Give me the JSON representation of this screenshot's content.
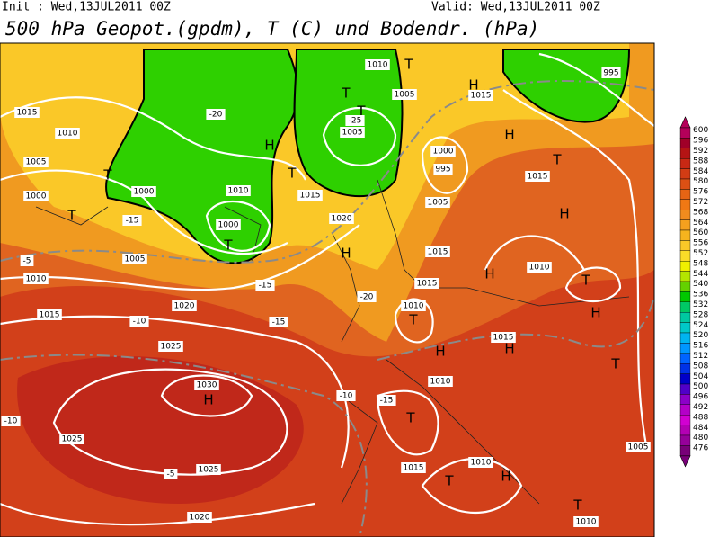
{
  "header": {
    "init": "Init : Wed,13JUL2011 00Z",
    "valid": "Valid: Wed,13JUL2011 00Z",
    "title": "500 hPa Geopot.(gpdm), T (C) und Bodendr. (hPa)"
  },
  "legend": {
    "levels": [
      600,
      596,
      592,
      588,
      584,
      580,
      576,
      572,
      568,
      564,
      560,
      556,
      552,
      548,
      544,
      540,
      536,
      532,
      528,
      524,
      520,
      516,
      512,
      508,
      504,
      500,
      496,
      492,
      488,
      484,
      480,
      476
    ],
    "colors": [
      "#b4005a",
      "#a00028",
      "#b41414",
      "#c82814",
      "#d23c14",
      "#dc5014",
      "#e66414",
      "#f07814",
      "#f08c1e",
      "#f5a01e",
      "#f5b41e",
      "#fac828",
      "#fadc28",
      "#f0f000",
      "#b4e600",
      "#64d200",
      "#00c800",
      "#00c864",
      "#00c8a0",
      "#00c8c8",
      "#00b4f0",
      "#0096ff",
      "#0064ff",
      "#0032e6",
      "#0000c8",
      "#5000c8",
      "#8c00c8",
      "#b400c8",
      "#d200d2",
      "#b400b4",
      "#96009a",
      "#780078"
    ]
  },
  "map_labels": [
    "1015",
    "1010",
    "1005",
    "1000",
    "T",
    "1005",
    "1010",
    "1015",
    "1020",
    "1025",
    "1030",
    "H",
    "1025",
    "1025",
    "1020",
    "T",
    "1000",
    "T",
    "1000",
    "H",
    "1010",
    "1015",
    "1020",
    "H",
    "T",
    "T",
    "1005",
    "T",
    "-25",
    "-20",
    "1010",
    "T",
    "1005",
    "H",
    "1015",
    "995",
    "H",
    "T",
    "1015",
    "H",
    "1015",
    "1010",
    "H",
    "T",
    "H",
    "T",
    "1015",
    "H",
    "H",
    "T",
    "1010",
    "T",
    "T",
    "H",
    "1010",
    "1015",
    "T",
    "1010",
    "1005",
    "-10",
    "-5",
    "-10",
    "-10",
    "-15",
    "-15",
    "-15",
    "-20",
    "1010",
    "1015",
    "1000",
    "995",
    "1005",
    "-5",
    "-15"
  ]
}
